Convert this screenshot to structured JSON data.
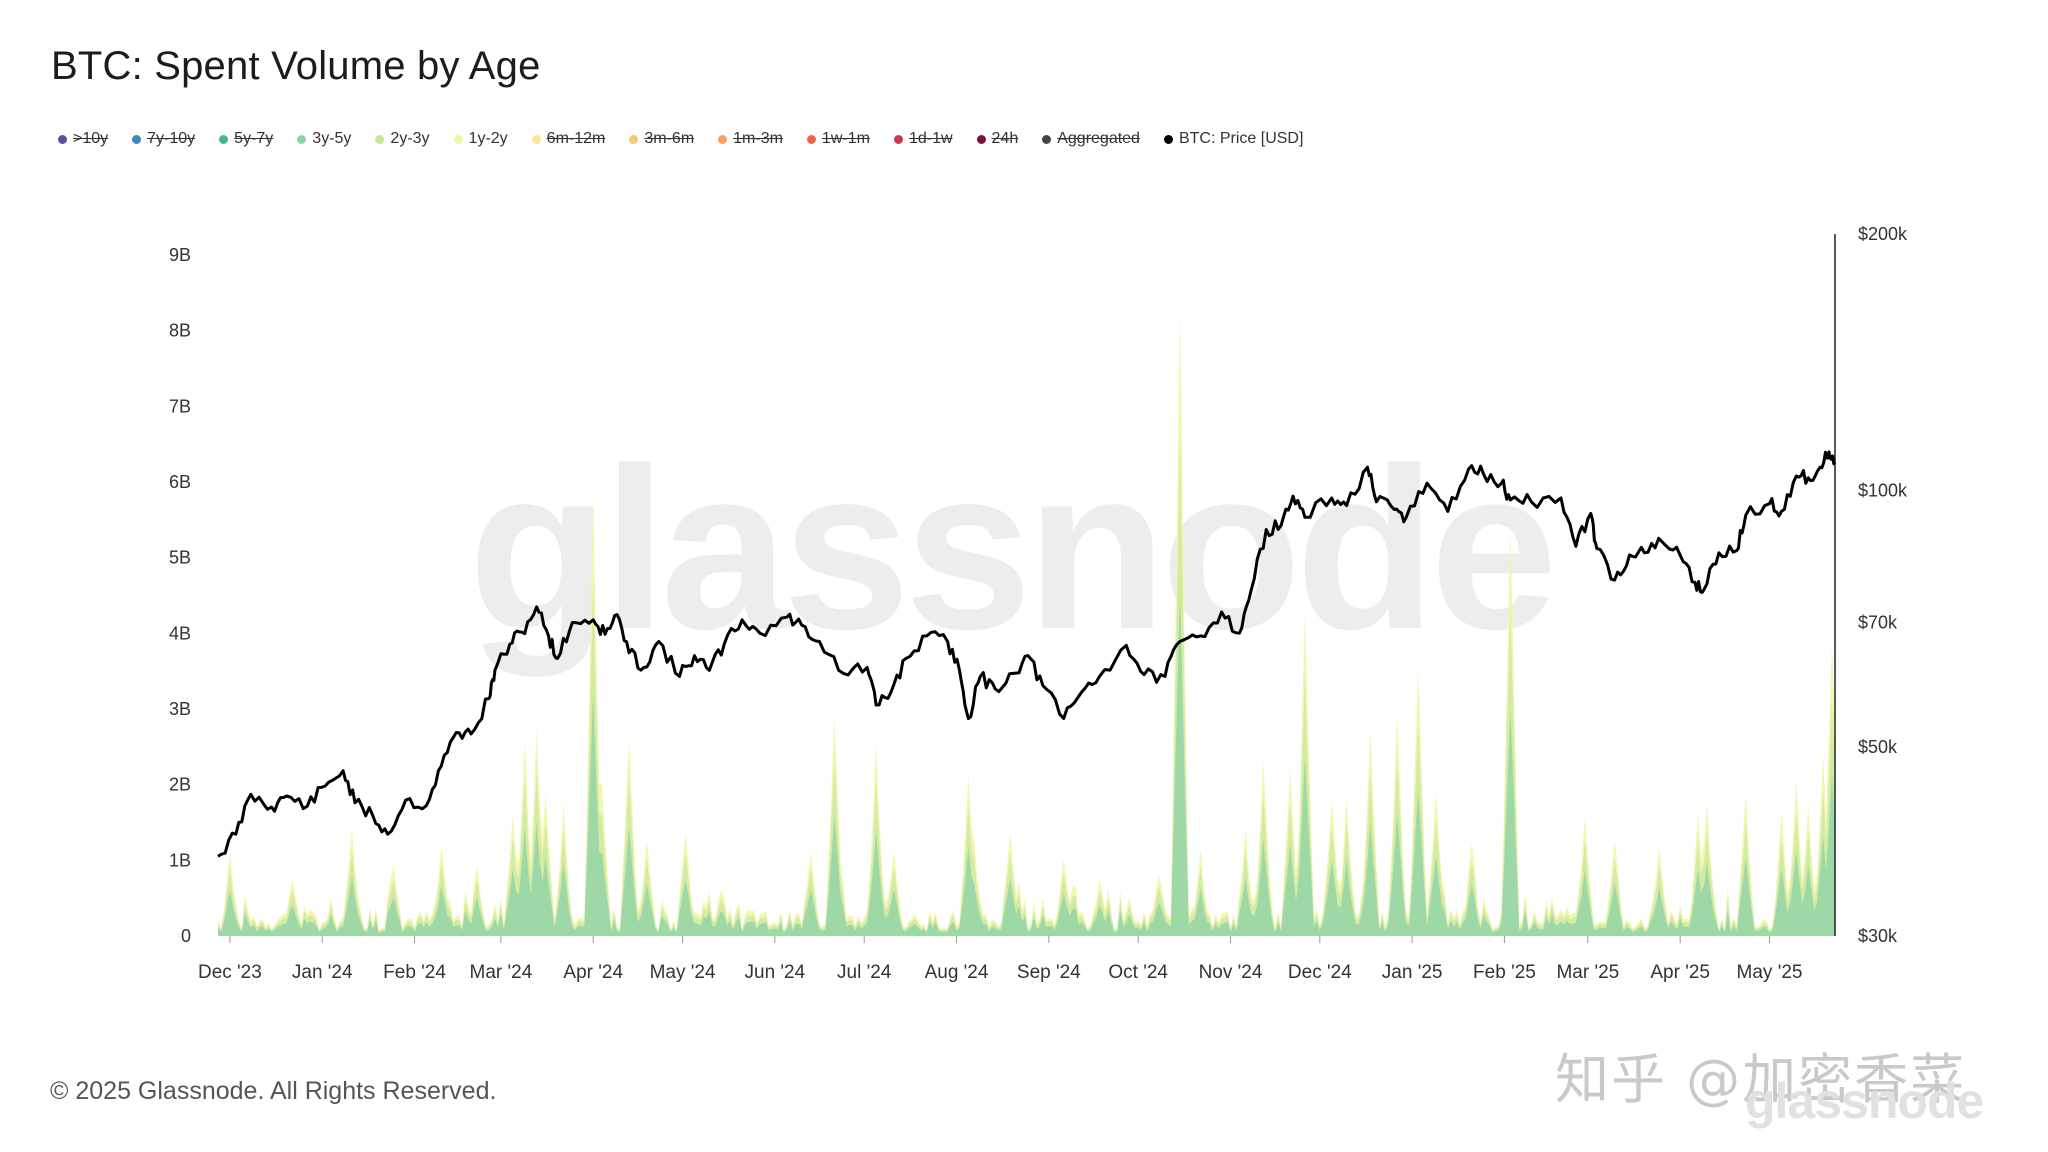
{
  "title": "BTC: Spent Volume by Age",
  "legend": [
    {
      "label": ">10y",
      "color": "#5b4f9a",
      "active": false
    },
    {
      "label": "7y-10y",
      "color": "#3a8bb7",
      "active": false
    },
    {
      "label": "5y-7y",
      "color": "#45b59c",
      "active": false
    },
    {
      "label": "3y-5y",
      "color": "#8fd3a0",
      "active": true
    },
    {
      "label": "2y-3y",
      "color": "#c6e69a",
      "active": true
    },
    {
      "label": "1y-2y",
      "color": "#eff6a3",
      "active": true
    },
    {
      "label": "6m-12m",
      "color": "#fbe69a",
      "active": false
    },
    {
      "label": "3m-6m",
      "color": "#f8c96e",
      "active": false
    },
    {
      "label": "1m-3m",
      "color": "#f3a25f",
      "active": false
    },
    {
      "label": "1w-1m",
      "color": "#e4694f",
      "active": false
    },
    {
      "label": "1d-1w",
      "color": "#c83a4b",
      "active": false
    },
    {
      "label": "24h",
      "color": "#7e0f3a",
      "active": false
    },
    {
      "label": "Aggregated",
      "color": "#444444",
      "active": false
    },
    {
      "label": "BTC: Price [USD]",
      "color": "#000000",
      "active": true
    }
  ],
  "watermark": "glassnode",
  "copyright": "© 2025 Glassnode. All Rights Reserved.",
  "attribution": "知乎 @加密香菜",
  "attribution_watermark": "glassnode",
  "chart_data": {
    "type": "area",
    "title": "BTC: Spent Volume by Age",
    "x_ticks": [
      "Dec '23",
      "Jan '24",
      "Feb '24",
      "Mar '24",
      "Apr '24",
      "May '24",
      "Jun '24",
      "Jul '24",
      "Aug '24",
      "Sep '24",
      "Oct '24",
      "Nov '24",
      "Dec '24",
      "Jan '25",
      "Feb '25",
      "Mar '25",
      "Apr '25",
      "May '25"
    ],
    "y_left": {
      "ticks": [
        "0",
        "1B",
        "2B",
        "3B",
        "4B",
        "5B",
        "6B",
        "7B",
        "8B",
        "9B"
      ],
      "range": [
        0,
        9000000000
      ]
    },
    "y_right": {
      "ticks": [
        "$30k",
        "$50k",
        "$70k",
        "$100k",
        "$200k"
      ],
      "scale": "log",
      "range": [
        30000,
        200000
      ]
    },
    "x_range": [
      "2023-11-27",
      "2025-05-23"
    ],
    "price_series": {
      "name": "BTC: Price [USD]",
      "color": "#000000",
      "points": [
        [
          "2023-11-27",
          37200
        ],
        [
          "2023-12-03",
          39500
        ],
        [
          "2023-12-08",
          44000
        ],
        [
          "2023-12-15",
          42500
        ],
        [
          "2023-12-20",
          43800
        ],
        [
          "2023-12-27",
          42600
        ],
        [
          "2024-01-02",
          45000
        ],
        [
          "2024-01-08",
          46900
        ],
        [
          "2024-01-12",
          43000
        ],
        [
          "2024-01-18",
          41500
        ],
        [
          "2024-01-23",
          39500
        ],
        [
          "2024-01-29",
          43300
        ],
        [
          "2024-02-05",
          42700
        ],
        [
          "2024-02-10",
          47500
        ],
        [
          "2024-02-15",
          52000
        ],
        [
          "2024-02-20",
          51800
        ],
        [
          "2024-02-26",
          57000
        ],
        [
          "2024-02-28",
          61500
        ],
        [
          "2024-03-04",
          66000
        ],
        [
          "2024-03-08",
          68200
        ],
        [
          "2024-03-13",
          73000
        ],
        [
          "2024-03-17",
          67500
        ],
        [
          "2024-03-20",
          63500
        ],
        [
          "2024-03-25",
          70000
        ],
        [
          "2024-04-01",
          70500
        ],
        [
          "2024-04-05",
          67800
        ],
        [
          "2024-04-09",
          71500
        ],
        [
          "2024-04-13",
          64500
        ],
        [
          "2024-04-18",
          62000
        ],
        [
          "2024-04-23",
          66500
        ],
        [
          "2024-04-30",
          60500
        ],
        [
          "2024-05-05",
          64000
        ],
        [
          "2024-05-10",
          61500
        ],
        [
          "2024-05-15",
          66000
        ],
        [
          "2024-05-21",
          70500
        ],
        [
          "2024-05-27",
          68000
        ],
        [
          "2024-06-05",
          71000
        ],
        [
          "2024-06-10",
          69500
        ],
        [
          "2024-06-16",
          66500
        ],
        [
          "2024-06-24",
          61000
        ],
        [
          "2024-07-02",
          62000
        ],
        [
          "2024-07-05",
          56000
        ],
        [
          "2024-07-10",
          58000
        ],
        [
          "2024-07-15",
          63500
        ],
        [
          "2024-07-22",
          67500
        ],
        [
          "2024-07-29",
          66500
        ],
        [
          "2024-08-02",
          61500
        ],
        [
          "2024-08-05",
          54000
        ],
        [
          "2024-08-09",
          60500
        ],
        [
          "2024-08-14",
          58500
        ],
        [
          "2024-08-20",
          61000
        ],
        [
          "2024-08-25",
          64000
        ],
        [
          "2024-08-30",
          59000
        ],
        [
          "2024-09-06",
          54000
        ],
        [
          "2024-09-12",
          58000
        ],
        [
          "2024-09-18",
          60500
        ],
        [
          "2024-09-27",
          65800
        ],
        [
          "2024-10-03",
          60800
        ],
        [
          "2024-10-10",
          60500
        ],
        [
          "2024-10-15",
          66500
        ],
        [
          "2024-10-22",
          67500
        ],
        [
          "2024-10-29",
          72000
        ],
        [
          "2024-11-04",
          68000
        ],
        [
          "2024-11-08",
          76500
        ],
        [
          "2024-11-13",
          90000
        ],
        [
          "2024-11-18",
          91000
        ],
        [
          "2024-11-22",
          98500
        ],
        [
          "2024-11-26",
          93000
        ],
        [
          "2024-12-05",
          98000
        ],
        [
          "2024-12-10",
          96000
        ],
        [
          "2024-12-17",
          106500
        ],
        [
          "2024-12-20",
          97000
        ],
        [
          "2024-12-26",
          95000
        ],
        [
          "2024-12-30",
          93000
        ],
        [
          "2025-01-06",
          102000
        ],
        [
          "2025-01-13",
          94500
        ],
        [
          "2025-01-20",
          106000
        ],
        [
          "2025-01-25",
          104500
        ],
        [
          "2025-01-31",
          102000
        ],
        [
          "2025-02-03",
          97500
        ],
        [
          "2025-02-10",
          97000
        ],
        [
          "2025-02-20",
          98000
        ],
        [
          "2025-02-25",
          86000
        ],
        [
          "2025-03-02",
          94000
        ],
        [
          "2025-03-04",
          85500
        ],
        [
          "2025-03-10",
          78500
        ],
        [
          "2025-03-15",
          84000
        ],
        [
          "2025-03-20",
          84500
        ],
        [
          "2025-03-26",
          87000
        ],
        [
          "2025-04-01",
          84000
        ],
        [
          "2025-04-06",
          78000
        ],
        [
          "2025-04-09",
          76500
        ],
        [
          "2025-04-14",
          84500
        ],
        [
          "2025-04-20",
          85000
        ],
        [
          "2025-04-23",
          93500
        ],
        [
          "2025-05-01",
          96500
        ],
        [
          "2025-05-05",
          94500
        ],
        [
          "2025-05-10",
          104000
        ],
        [
          "2025-05-14",
          103500
        ],
        [
          "2025-05-18",
          106500
        ],
        [
          "2025-05-21",
          111000
        ],
        [
          "2025-05-23",
          108000
        ]
      ]
    },
    "volume_series": [
      {
        "name": "1y-2y",
        "color": "#f1f6a6"
      },
      {
        "name": "2y-3y",
        "color": "#cfe9a4"
      },
      {
        "name": "3y-5y",
        "color": "#98d6a6"
      }
    ],
    "volume_spikes": [
      [
        "2023-12-01",
        1.0
      ],
      [
        "2023-12-22",
        0.7
      ],
      [
        "2024-01-11",
        1.3
      ],
      [
        "2024-01-25",
        0.9
      ],
      [
        "2024-02-10",
        1.1
      ],
      [
        "2024-02-22",
        0.8
      ],
      [
        "2024-03-05",
        1.5
      ],
      [
        "2024-03-09",
        2.5
      ],
      [
        "2024-03-13",
        2.6
      ],
      [
        "2024-03-16",
        1.8
      ],
      [
        "2024-03-22",
        1.6
      ],
      [
        "2024-04-01",
        5.7
      ],
      [
        "2024-04-04",
        1.9
      ],
      [
        "2024-04-13",
        2.6
      ],
      [
        "2024-04-19",
        1.2
      ],
      [
        "2024-05-02",
        1.3
      ],
      [
        "2024-05-14",
        0.6
      ],
      [
        "2024-06-13",
        1.1
      ],
      [
        "2024-06-21",
        2.8
      ],
      [
        "2024-07-05",
        2.4
      ],
      [
        "2024-07-11",
        1.1
      ],
      [
        "2024-08-05",
        2.0
      ],
      [
        "2024-08-07",
        1.1
      ],
      [
        "2024-08-19",
        1.3
      ],
      [
        "2024-09-06",
        1.0
      ],
      [
        "2024-09-18",
        0.7
      ],
      [
        "2024-10-08",
        0.7
      ],
      [
        "2024-10-15",
        8.2
      ],
      [
        "2024-10-22",
        1.0
      ],
      [
        "2024-11-06",
        1.3
      ],
      [
        "2024-11-12",
        2.2
      ],
      [
        "2024-11-21",
        2.1
      ],
      [
        "2024-11-26",
        4.2
      ],
      [
        "2024-12-05",
        1.8
      ],
      [
        "2024-12-10",
        1.7
      ],
      [
        "2024-12-18",
        2.6
      ],
      [
        "2024-12-27",
        2.8
      ],
      [
        "2025-01-03",
        3.5
      ],
      [
        "2025-01-09",
        1.9
      ],
      [
        "2025-01-21",
        1.2
      ],
      [
        "2025-02-03",
        5.3
      ],
      [
        "2025-02-28",
        1.5
      ],
      [
        "2025-03-10",
        1.2
      ],
      [
        "2025-03-25",
        1.1
      ],
      [
        "2025-04-07",
        1.5
      ],
      [
        "2025-04-10",
        1.7
      ],
      [
        "2025-04-23",
        1.8
      ],
      [
        "2025-05-05",
        1.5
      ],
      [
        "2025-05-10",
        2.0
      ],
      [
        "2025-05-14",
        1.6
      ],
      [
        "2025-05-19",
        2.3
      ],
      [
        "2025-05-22",
        3.8
      ]
    ]
  }
}
